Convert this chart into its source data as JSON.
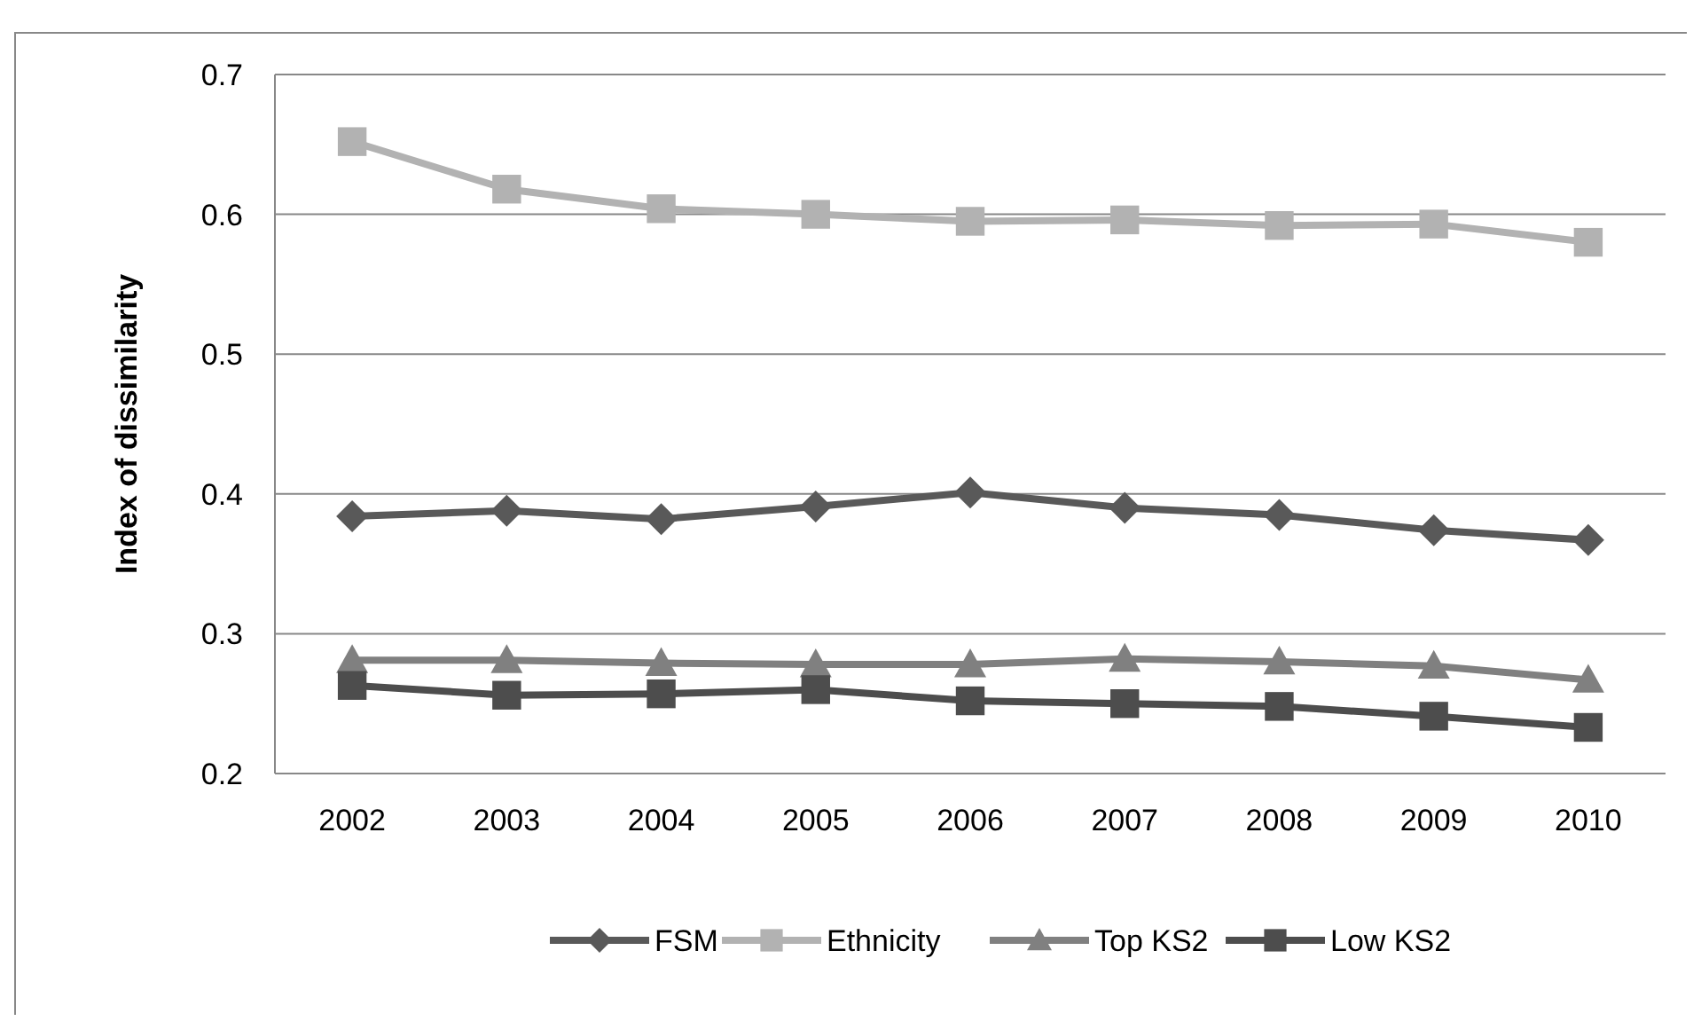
{
  "chart_data": {
    "type": "line",
    "ylabel": "Index of dissimilarity",
    "categories": [
      "2002",
      "2003",
      "2004",
      "2005",
      "2006",
      "2007",
      "2008",
      "2009",
      "2010"
    ],
    "series": [
      {
        "name": "FSM",
        "color": "#595959",
        "marker": "diamond",
        "values": [
          0.384,
          0.388,
          0.382,
          0.391,
          0.401,
          0.39,
          0.385,
          0.374,
          0.367
        ]
      },
      {
        "name": "Ethnicity",
        "color": "#b2b2b2",
        "marker": "square",
        "values": [
          0.652,
          0.618,
          0.604,
          0.6,
          0.595,
          0.596,
          0.592,
          0.593,
          0.58
        ]
      },
      {
        "name": "Top KS2",
        "color": "#808080",
        "marker": "triangle",
        "values": [
          0.281,
          0.281,
          0.279,
          0.278,
          0.278,
          0.282,
          0.28,
          0.277,
          0.267
        ]
      },
      {
        "name": "Low KS2",
        "color": "#4d4d4d",
        "marker": "square",
        "values": [
          0.263,
          0.256,
          0.257,
          0.26,
          0.252,
          0.25,
          0.248,
          0.241,
          0.233
        ]
      }
    ],
    "ylim": [
      0.2,
      0.7
    ],
    "yticks": [
      0.2,
      0.3,
      0.4,
      0.5,
      0.6,
      0.7
    ],
    "grid": "y",
    "legend": "bottom"
  }
}
